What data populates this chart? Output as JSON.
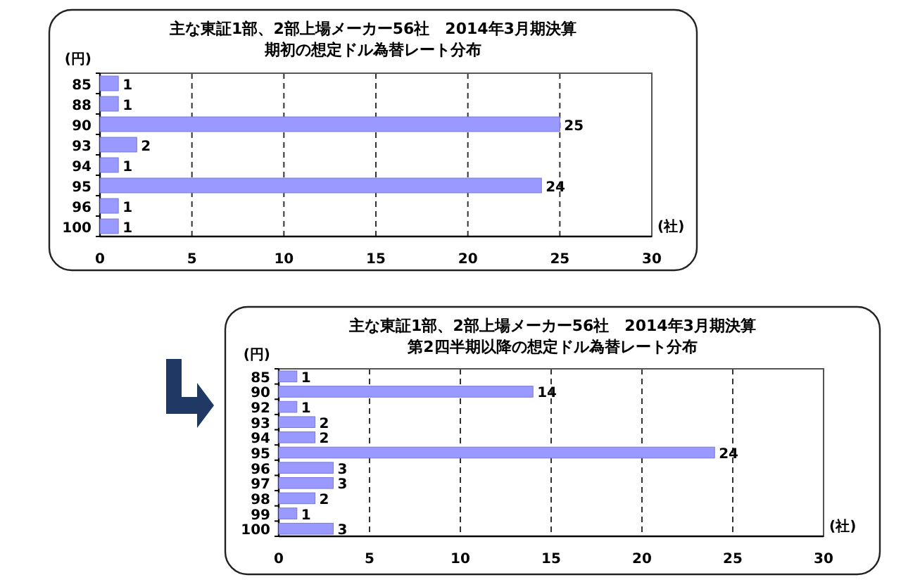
{
  "chart_data": [
    {
      "type": "bar",
      "orientation": "horizontal",
      "title": "主な東証1部、2部上場メーカー56社　2014年3月期決算",
      "subtitle": "期初の想定ドル為替レート分布",
      "ylabel": "(円)",
      "xlabel": "(社)",
      "categories": [
        "85",
        "88",
        "90",
        "93",
        "94",
        "95",
        "96",
        "100"
      ],
      "values": [
        1,
        1,
        25,
        2,
        1,
        24,
        1,
        1
      ],
      "color": "#9999ff",
      "xlim": [
        0,
        30
      ],
      "xticks": [
        0,
        5,
        10,
        15,
        20,
        25,
        30
      ],
      "grid": "x",
      "data_labels": true
    },
    {
      "type": "bar",
      "orientation": "horizontal",
      "title": "主な東証1部、2部上場メーカー56社　2014年3月期決算",
      "subtitle": "第2四半期以降の想定ドル為替レート分布",
      "ylabel": "(円)",
      "xlabel": "(社)",
      "categories": [
        "85",
        "90",
        "92",
        "93",
        "94",
        "95",
        "96",
        "97",
        "98",
        "99",
        "100"
      ],
      "values": [
        1,
        14,
        1,
        2,
        2,
        24,
        3,
        3,
        2,
        1,
        3
      ],
      "color": "#9999ff",
      "xlim": [
        0,
        30
      ],
      "xticks": [
        0,
        5,
        10,
        15,
        20,
        25,
        30
      ],
      "grid": "x",
      "data_labels": true
    }
  ]
}
